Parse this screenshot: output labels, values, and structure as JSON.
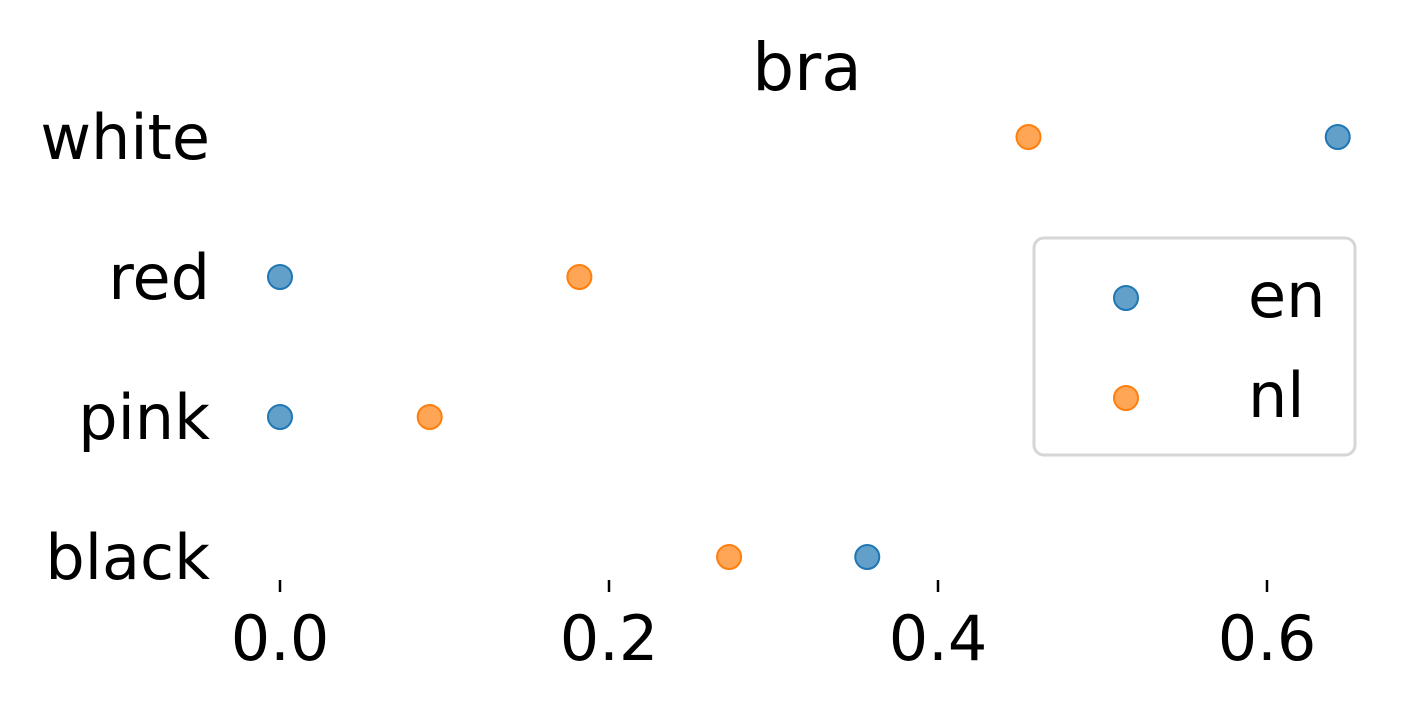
{
  "chart_data": {
    "type": "scatter",
    "title": "bra",
    "xlabel": "",
    "ylabel": "",
    "categories": [
      "white",
      "red",
      "pink",
      "black"
    ],
    "series": [
      {
        "name": "en",
        "color": "#1f77b4",
        "values": [
          0.643,
          0.0,
          0.0,
          0.357
        ]
      },
      {
        "name": "nl",
        "color": "#ff7f0e",
        "values": [
          0.455,
          0.182,
          0.091,
          0.273
        ]
      }
    ],
    "xticks": [
      "0.0",
      "0.2",
      "0.4",
      "0.6"
    ],
    "xtick_values": [
      0.0,
      0.2,
      0.4,
      0.6
    ],
    "xlim": [
      -0.02,
      0.655
    ],
    "grid": false,
    "legend_position": "right"
  }
}
